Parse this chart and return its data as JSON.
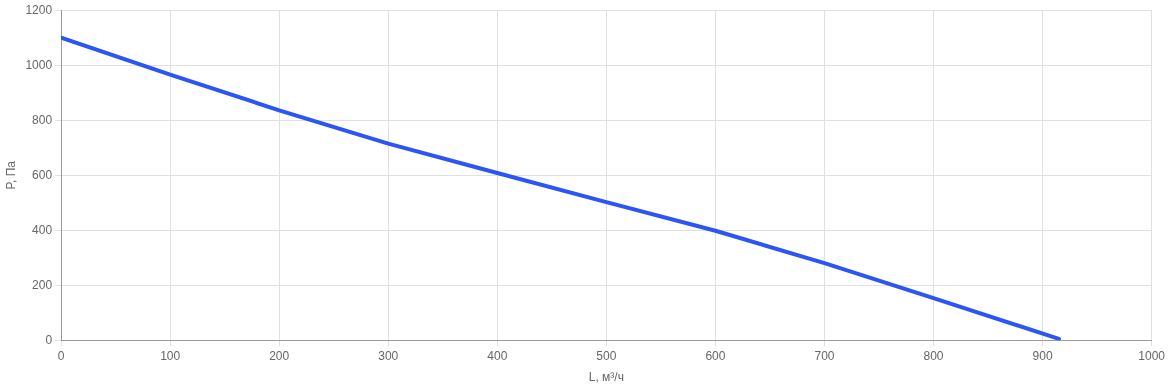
{
  "chart_data": {
    "type": "line",
    "xlabel": "L, м³/ч",
    "ylabel": "P, Па",
    "x": [
      0,
      100,
      200,
      300,
      400,
      500,
      600,
      700,
      800,
      915
    ],
    "series": [
      {
        "color": "#2b55f5",
        "values": [
          1100,
          966,
          836,
          715,
          608,
          502,
          398,
          280,
          153,
          5
        ]
      }
    ],
    "xlim": [
      0,
      1000
    ],
    "xticks": [
      0,
      100,
      200,
      300,
      400,
      500,
      600,
      700,
      800,
      900,
      1000
    ],
    "ylim": [
      0,
      1200
    ],
    "yticks": [
      0,
      200,
      400,
      600,
      800,
      1000,
      1200
    ],
    "grid": true,
    "legend": false,
    "marker": "none",
    "line_style": "solid"
  }
}
